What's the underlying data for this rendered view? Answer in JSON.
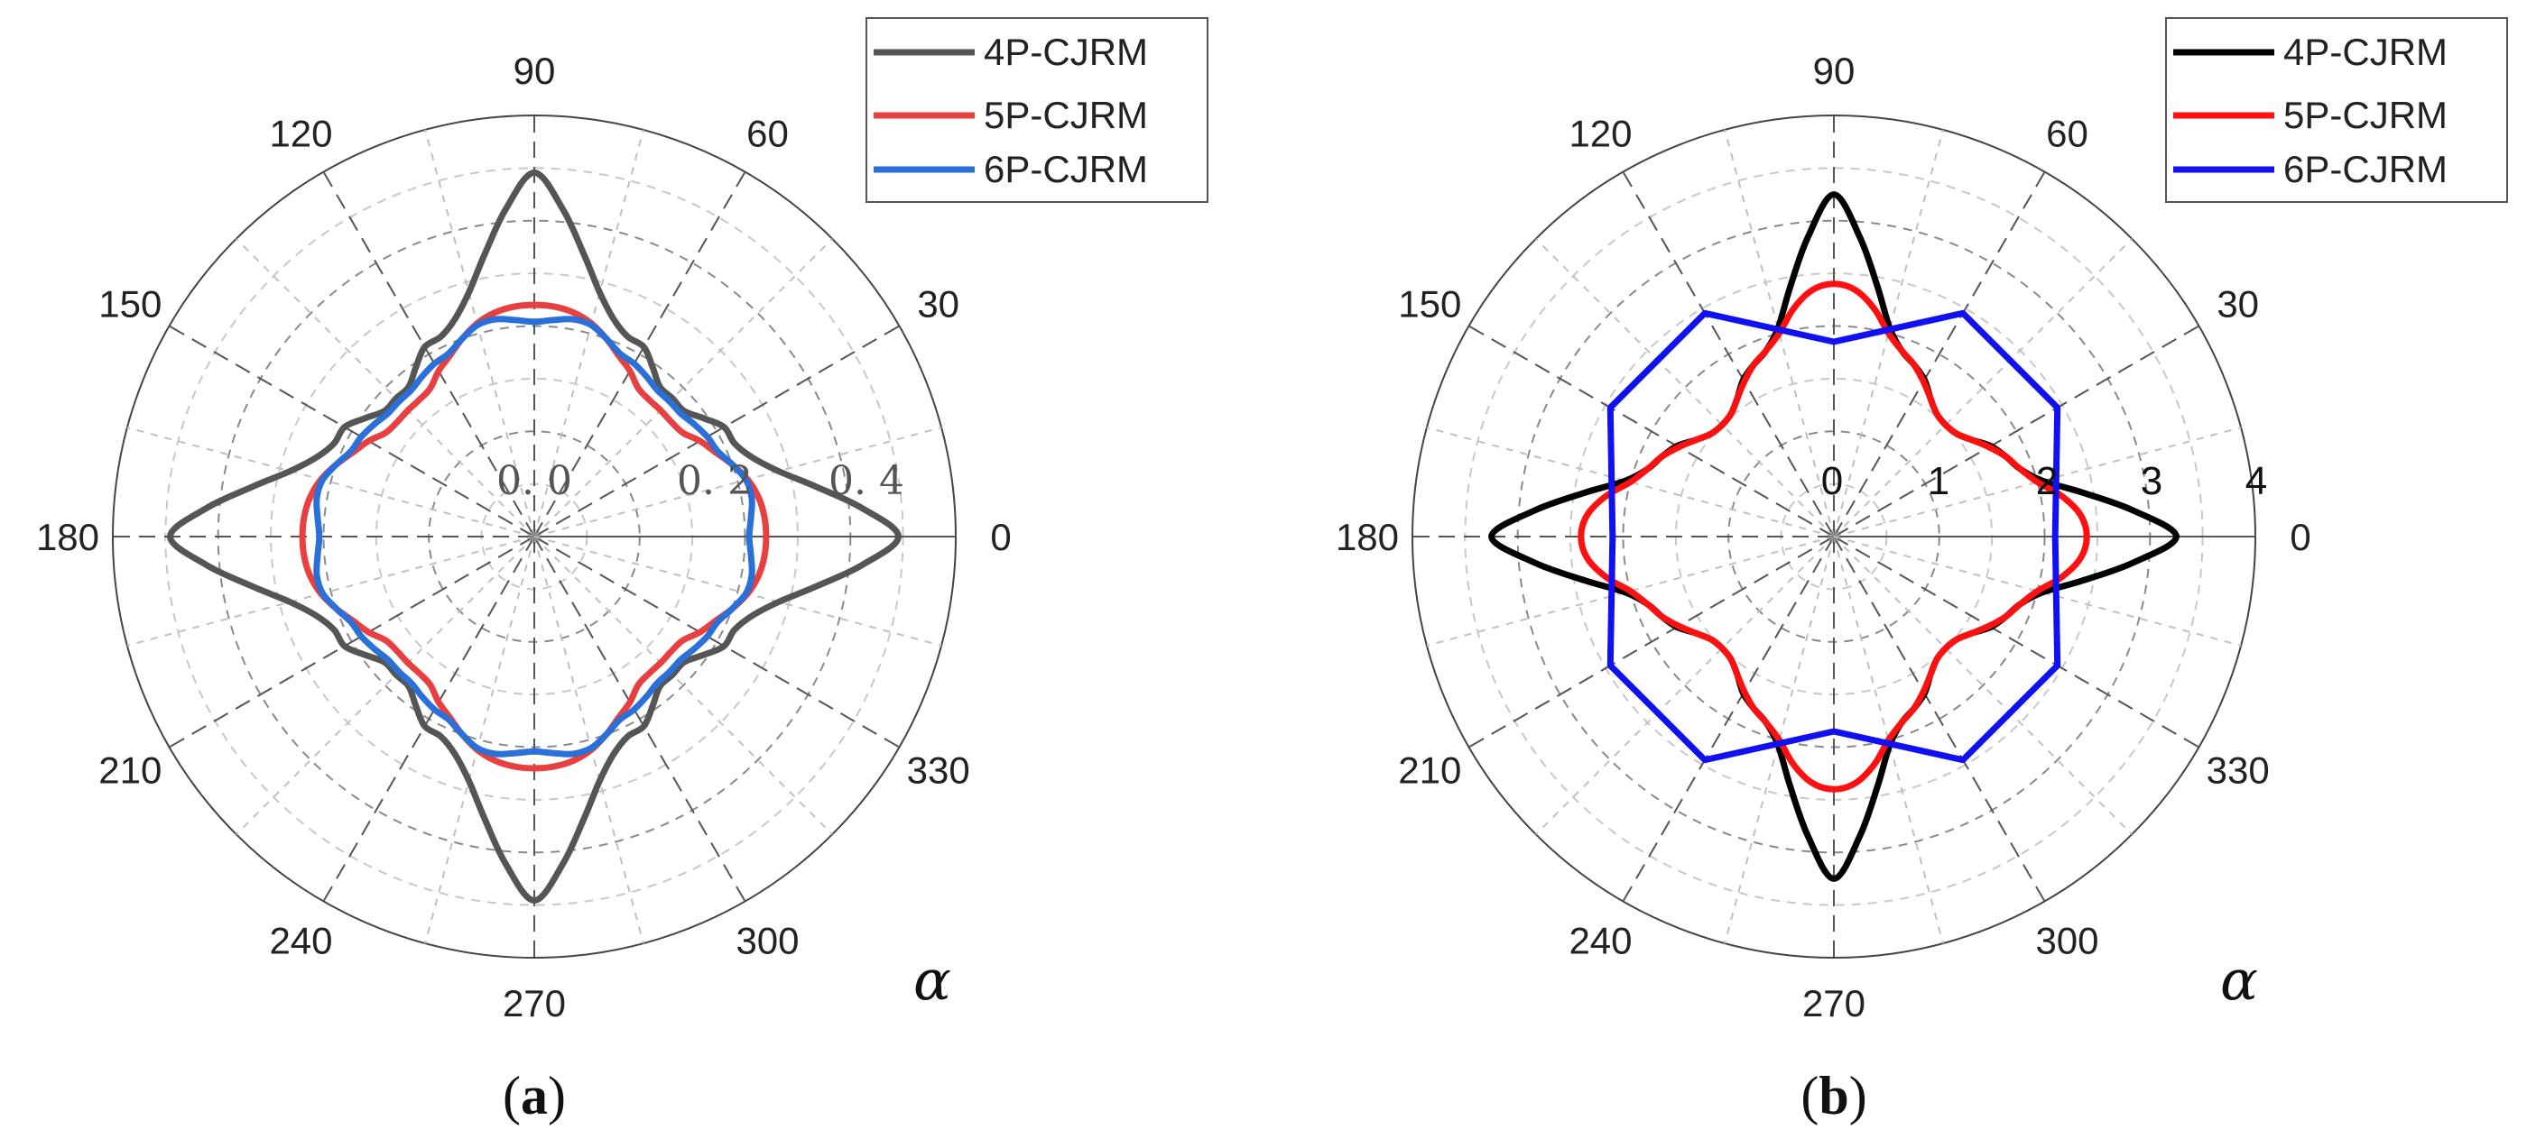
{
  "chart_data": [
    {
      "type": "polar-line",
      "panel_label": "a",
      "theta_ticks": [
        "0",
        "30",
        "60",
        "90",
        "120",
        "150",
        "180",
        "210",
        "240",
        "270",
        "300",
        "330"
      ],
      "r_tick_labels": [
        "0. 0",
        "0. 2",
        "0. 4"
      ],
      "theta_symbol": "α",
      "rlim": [
        0,
        0.5
      ],
      "rings": [
        0.0625,
        0.125,
        0.1875,
        0.25,
        0.3125,
        0.375,
        0.4375,
        0.5
      ],
      "theta_unit": "deg",
      "legend": {
        "placement": "top-right",
        "entries": [
          "4P-CJRM",
          "5P-CJRM",
          "6P-CJRM"
        ]
      },
      "series": [
        {
          "name": "4P-CJRM",
          "color": "#555555",
          "theta": [
            0,
            5,
            10,
            15,
            20,
            25,
            30,
            35,
            40,
            45
          ],
          "r": [
            0.432,
            0.39,
            0.34,
            0.3,
            0.275,
            0.262,
            0.26,
            0.245,
            0.232,
            0.232
          ],
          "symmetry": "dihedral-4"
        },
        {
          "name": "5P-CJRM",
          "color": "#e84040",
          "theta": [
            0,
            5,
            10,
            15,
            20,
            25,
            30,
            35,
            40,
            45
          ],
          "r": [
            0.275,
            0.274,
            0.27,
            0.262,
            0.25,
            0.237,
            0.227,
            0.215,
            0.212,
            0.212
          ],
          "symmetry": "dihedral-4"
        },
        {
          "name": "6P-CJRM",
          "color": "#2a70d8",
          "theta": [
            0,
            5,
            10,
            15,
            20,
            25,
            30,
            35,
            40,
            45
          ],
          "r": [
            0.255,
            0.258,
            0.262,
            0.26,
            0.25,
            0.24,
            0.237,
            0.232,
            0.227,
            0.227
          ],
          "symmetry": "dihedral-4"
        }
      ]
    },
    {
      "type": "polar-line",
      "panel_label": "b",
      "theta_ticks": [
        "0",
        "30",
        "60",
        "90",
        "120",
        "150",
        "180",
        "210",
        "240",
        "270",
        "300",
        "330"
      ],
      "r_tick_labels": [
        "0",
        "1",
        "2",
        "3",
        "4"
      ],
      "theta_symbol": "α",
      "rlim": [
        0,
        4
      ],
      "rings": [
        0.5,
        1,
        1.5,
        2,
        2.5,
        3,
        3.5,
        4
      ],
      "theta_unit": "deg",
      "legend": {
        "placement": "top-right",
        "entries": [
          "4P-CJRM",
          "5P-CJRM",
          "6P-CJRM"
        ]
      },
      "series": [
        {
          "name": "4P-CJRM",
          "color": "#000000",
          "theta": [
            0,
            5,
            10,
            15,
            20,
            25,
            30,
            35,
            40,
            45
          ],
          "r": [
            3.25,
            2.85,
            2.4,
            2.05,
            1.88,
            1.8,
            1.72,
            1.6,
            1.52,
            1.5
          ],
          "symmetry": "dihedral-4"
        },
        {
          "name": "5P-CJRM",
          "color": "#ff1010",
          "theta": [
            0,
            5,
            10,
            15,
            20,
            25,
            30,
            35,
            40,
            45
          ],
          "r": [
            2.4,
            2.35,
            2.2,
            2.0,
            1.88,
            1.8,
            1.7,
            1.6,
            1.52,
            1.5
          ],
          "symmetry": "dihedral-4"
        },
        {
          "name": "6P-CJRM",
          "color": "#1010f0",
          "theta": [
            0,
            30,
            60,
            90,
            120,
            150,
            180,
            210,
            240,
            270,
            300,
            330
          ],
          "r": [
            2.1,
            2.45,
            2.45,
            1.85,
            2.45,
            2.45,
            2.1,
            2.45,
            2.45,
            1.85,
            2.45,
            2.45
          ],
          "symmetry": "vertices"
        }
      ]
    }
  ]
}
